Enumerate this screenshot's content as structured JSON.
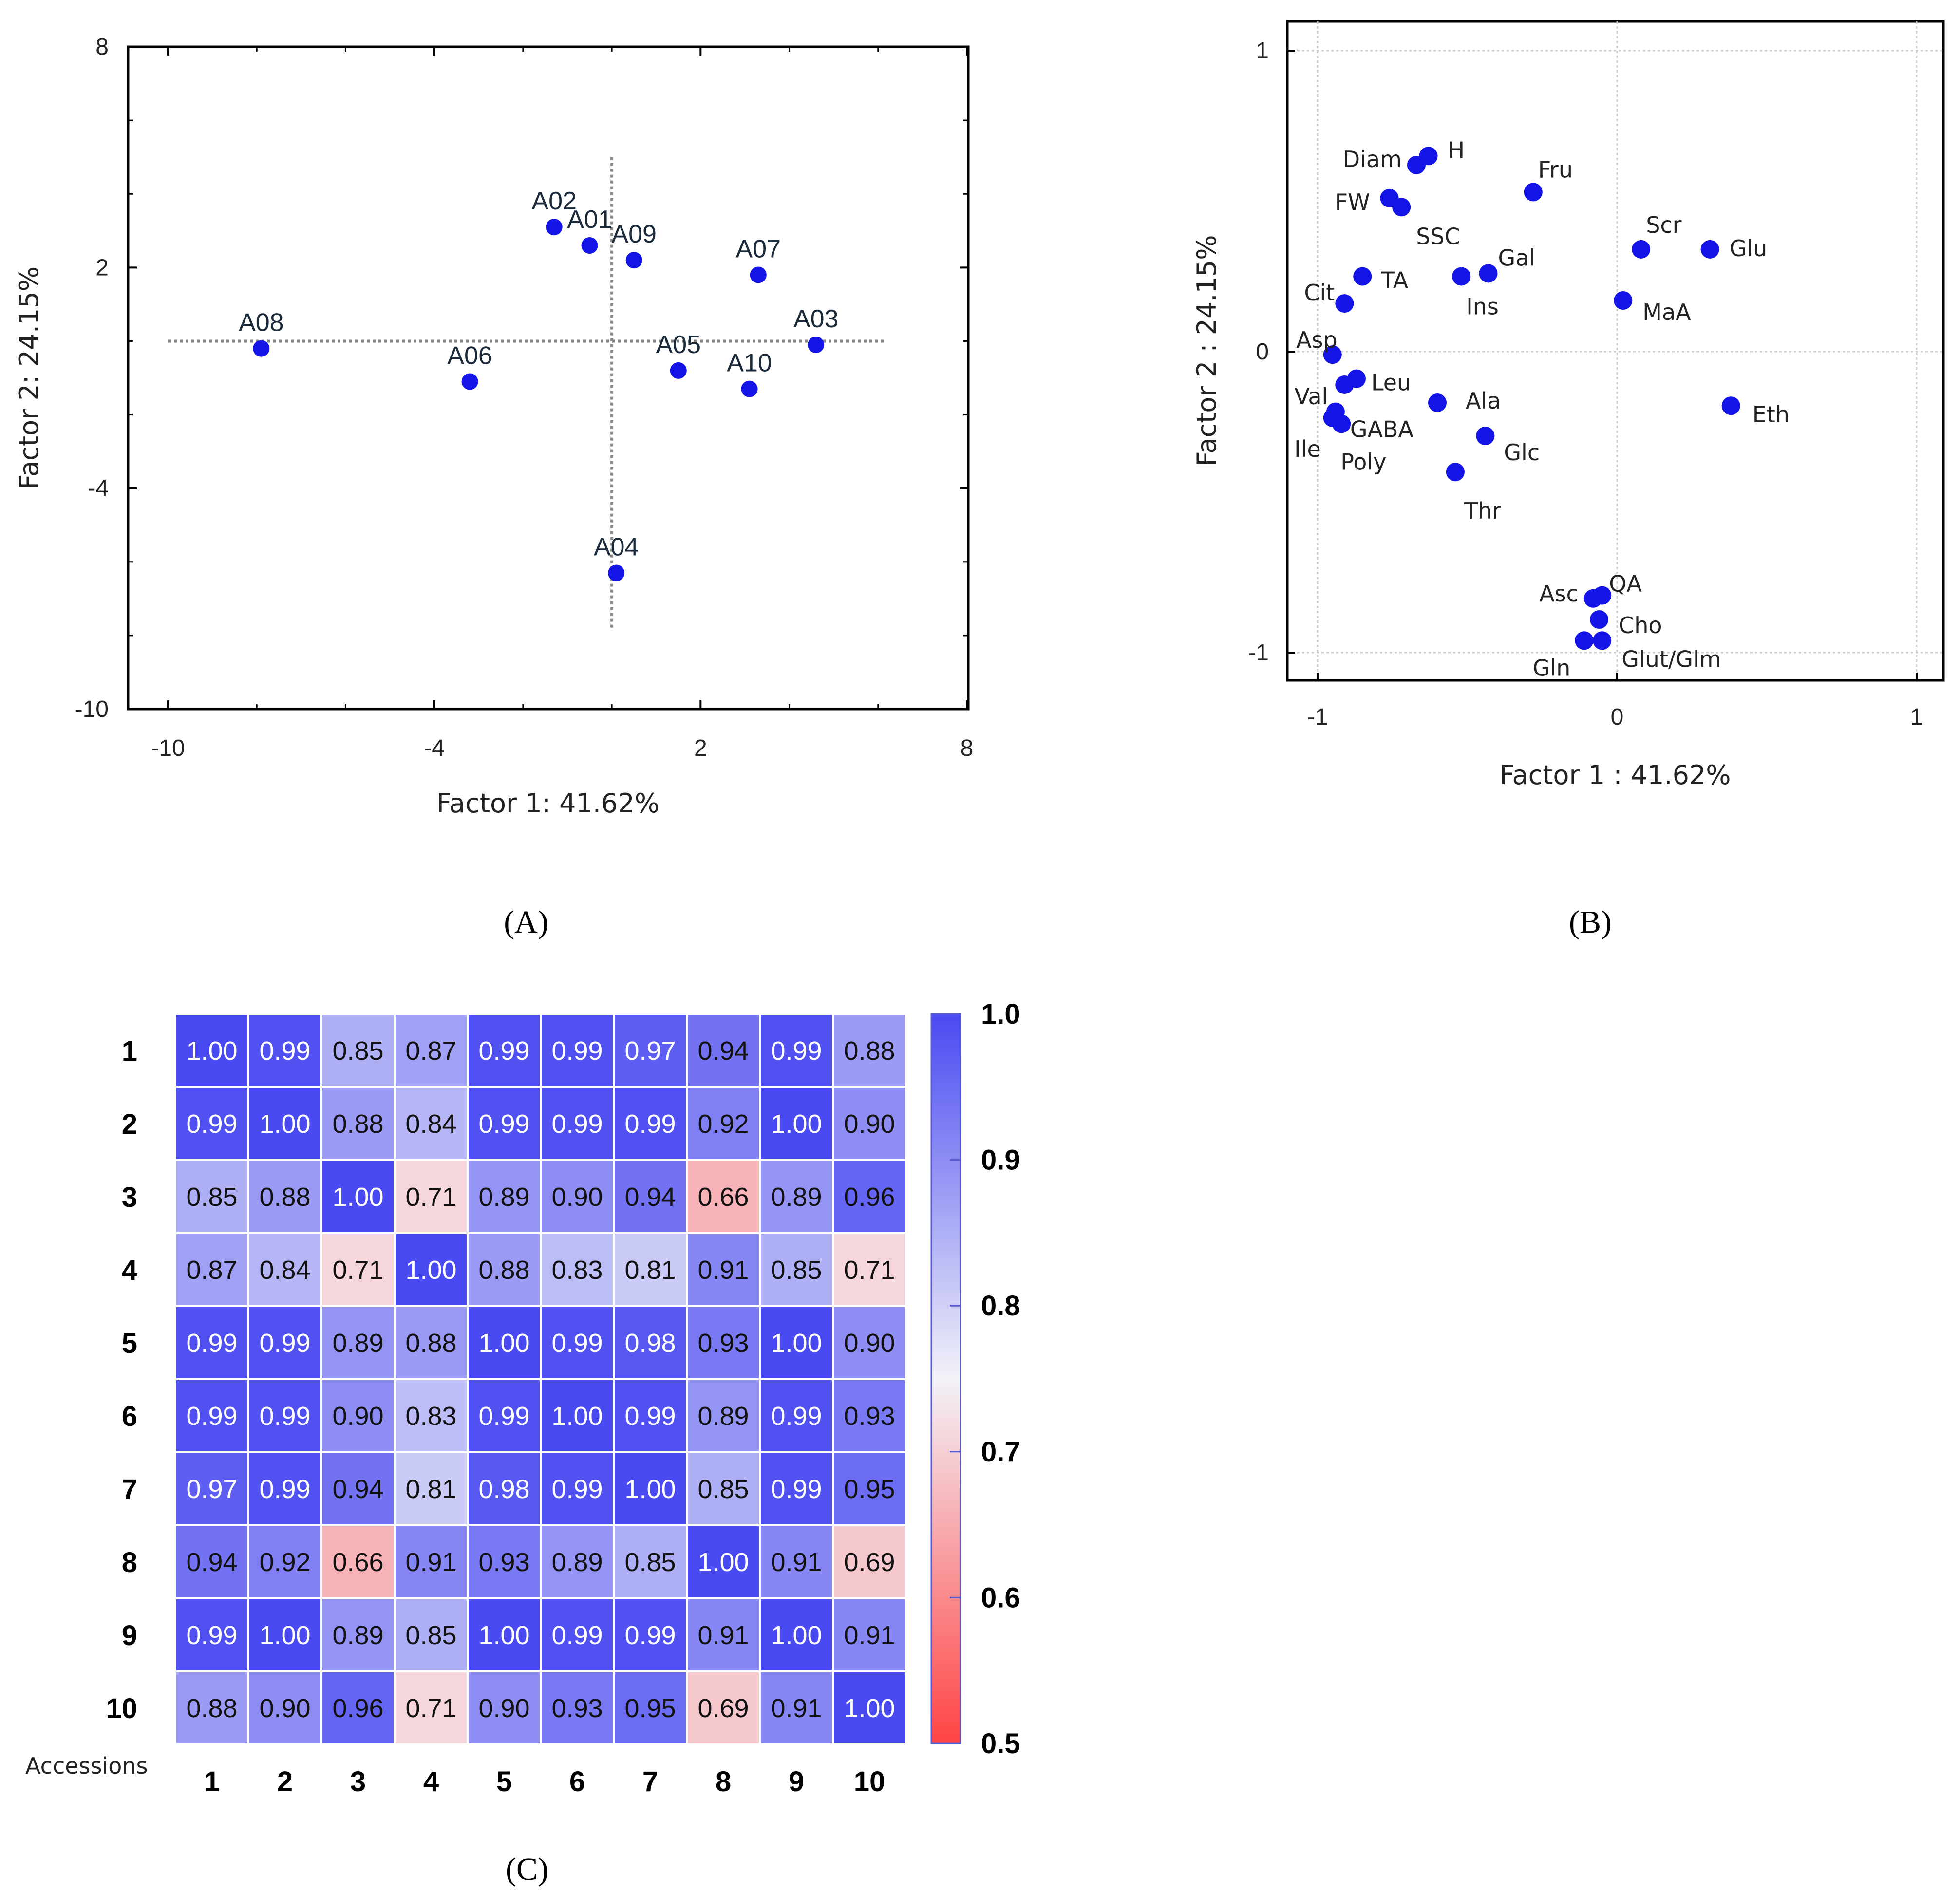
{
  "chart_data": [
    {
      "id": "A",
      "type": "scatter",
      "panel_label": "(A)",
      "xlabel": "Factor 1: 41.62%",
      "ylabel": "Factor 2: 24.15%",
      "xlim": [
        -10,
        8
      ],
      "ylim": [
        -10,
        8
      ],
      "xticks": [
        -10,
        -4,
        2,
        8
      ],
      "yticks": [
        8,
        2,
        -4,
        -10
      ],
      "reference_lines": {
        "x": 0,
        "y": 0
      },
      "points": [
        {
          "label": "A08",
          "x": -7.9,
          "y": -0.2
        },
        {
          "label": "A06",
          "x": -3.2,
          "y": -1.1
        },
        {
          "label": "A02",
          "x": -1.3,
          "y": 3.1
        },
        {
          "label": "A01",
          "x": -0.5,
          "y": 2.6
        },
        {
          "label": "A09",
          "x": 0.5,
          "y": 2.2
        },
        {
          "label": "A07",
          "x": 3.3,
          "y": 1.8
        },
        {
          "label": "A05",
          "x": 1.5,
          "y": -0.8
        },
        {
          "label": "A03",
          "x": 4.6,
          "y": -0.1
        },
        {
          "label": "A10",
          "x": 3.1,
          "y": -1.3
        },
        {
          "label": "A04",
          "x": 0.1,
          "y": -6.3
        }
      ]
    },
    {
      "id": "B",
      "type": "scatter",
      "panel_label": "(B)",
      "xlabel": "Factor 1 : 41.62%",
      "ylabel": "Factor 2 : 24.15%",
      "xlim": [
        -1.1,
        1.1
      ],
      "ylim": [
        -1.1,
        1.1
      ],
      "xticks": [
        -1,
        0,
        1
      ],
      "yticks": [
        1,
        0,
        -1
      ],
      "grid": true,
      "points": [
        {
          "label": "H",
          "x": -0.63,
          "y": 0.65
        },
        {
          "label": "Diam",
          "x": -0.67,
          "y": 0.62
        },
        {
          "label": "FW",
          "x": -0.76,
          "y": 0.51
        },
        {
          "label": "SSC",
          "x": -0.72,
          "y": 0.48
        },
        {
          "label": "Fru",
          "x": -0.28,
          "y": 0.53
        },
        {
          "label": "Scr",
          "x": 0.08,
          "y": 0.34
        },
        {
          "label": "Glu",
          "x": 0.31,
          "y": 0.34
        },
        {
          "label": "Gal",
          "x": -0.43,
          "y": 0.26
        },
        {
          "label": "Ins",
          "x": -0.52,
          "y": 0.25
        },
        {
          "label": "TA",
          "x": -0.85,
          "y": 0.25
        },
        {
          "label": "Cit",
          "x": -0.91,
          "y": 0.16
        },
        {
          "label": "MaA",
          "x": 0.02,
          "y": 0.17
        },
        {
          "label": "Asp",
          "x": -0.95,
          "y": -0.01
        },
        {
          "label": "Val",
          "x": -0.91,
          "y": -0.11
        },
        {
          "label": "Leu",
          "x": -0.87,
          "y": -0.09
        },
        {
          "label": "Ala",
          "x": -0.6,
          "y": -0.17
        },
        {
          "label": "Eth",
          "x": 0.38,
          "y": -0.18
        },
        {
          "label": "GABA",
          "x": -0.94,
          "y": -0.2
        },
        {
          "label": "Ile",
          "x": -0.95,
          "y": -0.22
        },
        {
          "label": "Poly",
          "x": -0.92,
          "y": -0.24
        },
        {
          "label": "Glc",
          "x": -0.44,
          "y": -0.28
        },
        {
          "label": "Thr",
          "x": -0.54,
          "y": -0.4
        },
        {
          "label": "QA",
          "x": -0.05,
          "y": -0.81
        },
        {
          "label": "Asc",
          "x": -0.08,
          "y": -0.82
        },
        {
          "label": "Cho",
          "x": -0.06,
          "y": -0.89
        },
        {
          "label": "Glut/Glm",
          "x": -0.05,
          "y": -0.96
        },
        {
          "label": "Gln",
          "x": -0.11,
          "y": -0.96
        }
      ]
    },
    {
      "id": "C",
      "type": "heatmap",
      "panel_label": "(C)",
      "xlabel": "Accessions",
      "categories": [
        "1",
        "2",
        "3",
        "4",
        "5",
        "6",
        "7",
        "8",
        "9",
        "10"
      ],
      "matrix": [
        [
          "1.00",
          "0.99",
          "0.85",
          "0.87",
          "0.99",
          "0.99",
          "0.97",
          "0.94",
          "0.99",
          "0.88"
        ],
        [
          "0.99",
          "1.00",
          "0.88",
          "0.84",
          "0.99",
          "0.99",
          "0.99",
          "0.92",
          "1.00",
          "0.90"
        ],
        [
          "0.85",
          "0.88",
          "1.00",
          "0.71",
          "0.89",
          "0.90",
          "0.94",
          "0.66",
          "0.89",
          "0.96"
        ],
        [
          "0.87",
          "0.84",
          "0.71",
          "1.00",
          "0.88",
          "0.83",
          "0.81",
          "0.91",
          "0.85",
          "0.71"
        ],
        [
          "0.99",
          "0.99",
          "0.89",
          "0.88",
          "1.00",
          "0.99",
          "0.98",
          "0.93",
          "1.00",
          "0.90"
        ],
        [
          "0.99",
          "0.99",
          "0.90",
          "0.83",
          "0.99",
          "1.00",
          "0.99",
          "0.89",
          "0.99",
          "0.93"
        ],
        [
          "0.97",
          "0.99",
          "0.94",
          "0.81",
          "0.98",
          "0.99",
          "1.00",
          "0.85",
          "0.99",
          "0.95"
        ],
        [
          "0.94",
          "0.92",
          "0.66",
          "0.91",
          "0.93",
          "0.89",
          "0.85",
          "1.00",
          "0.91",
          "0.69"
        ],
        [
          "0.99",
          "1.00",
          "0.89",
          "0.85",
          "1.00",
          "0.99",
          "0.99",
          "0.91",
          "1.00",
          "0.91"
        ],
        [
          "0.88",
          "0.90",
          "0.96",
          "0.71",
          "0.90",
          "0.93",
          "0.95",
          "0.69",
          "0.91",
          "1.00"
        ]
      ],
      "colorbar": {
        "range": [
          0.5,
          1.0
        ],
        "ticks": [
          "1.0",
          "0.9",
          "0.8",
          "0.7",
          "0.6",
          "0.5"
        ],
        "colors": {
          "low": "#ff4444",
          "mid": "#f2f2f8",
          "high": "#4a4af2"
        }
      }
    }
  ],
  "colors": {
    "point": "#1414e6",
    "frame": "#000000",
    "refline": "#888888",
    "grid": "#cccccc"
  }
}
